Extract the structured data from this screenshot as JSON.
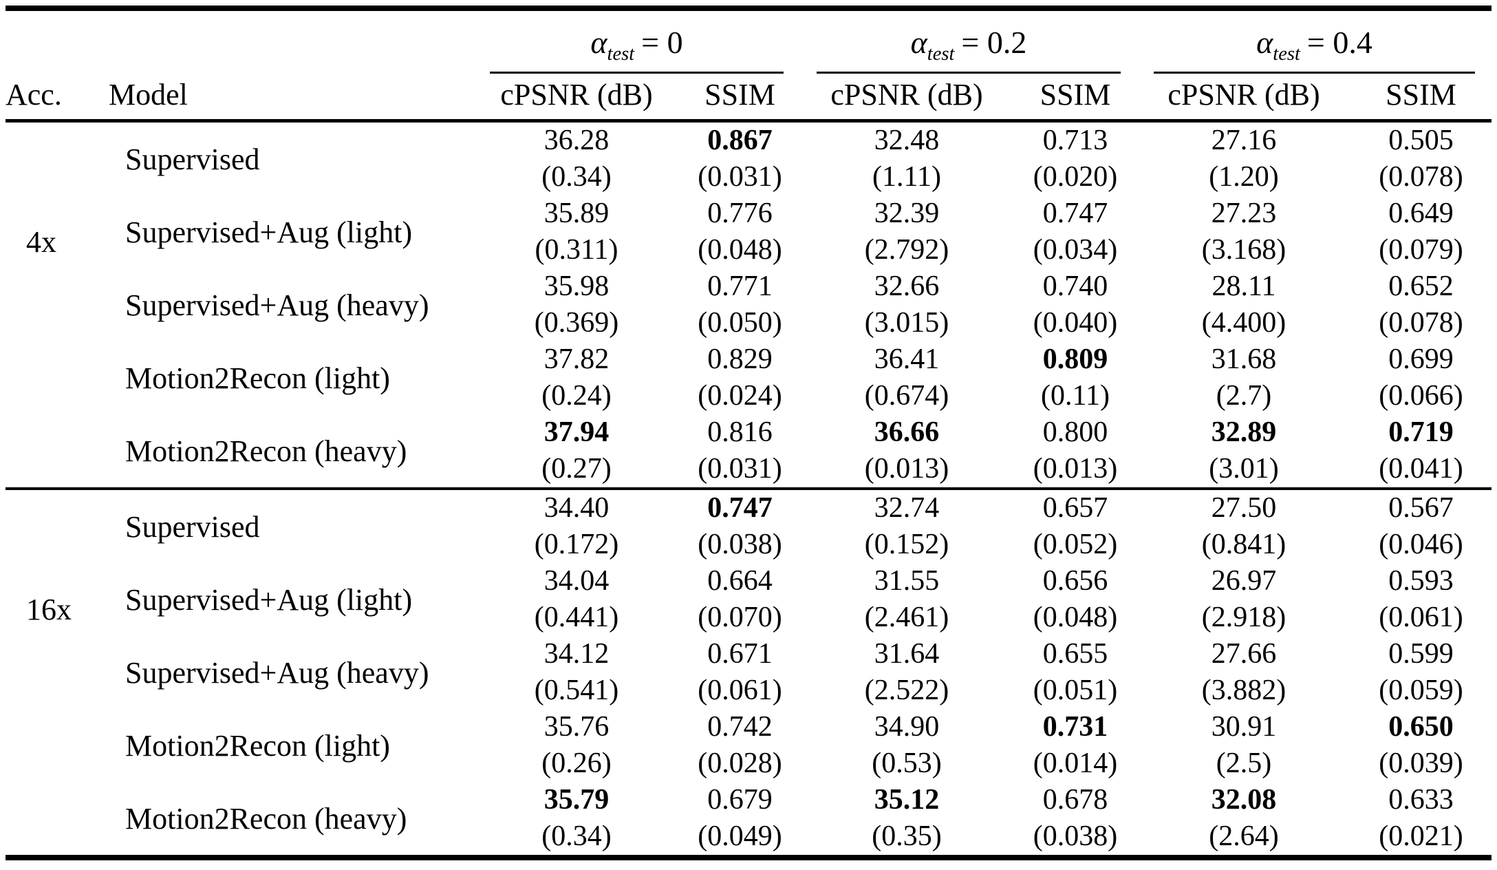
{
  "header": {
    "acc": "Acc.",
    "model": "Model",
    "alpha_groups": [
      {
        "alpha": "α",
        "sub": "test",
        "eq": "= 0"
      },
      {
        "alpha": "α",
        "sub": "test",
        "eq": "= 0.2"
      },
      {
        "alpha": "α",
        "sub": "test",
        "eq": "= 0.4"
      }
    ],
    "metric_cols": [
      "cPSNR (dB)",
      "SSIM",
      "cPSNR (dB)",
      "SSIM",
      "cPSNR (dB)",
      "SSIM"
    ]
  },
  "body": {
    "groups": [
      {
        "acc": "4x",
        "rows": [
          {
            "model": "Supervised",
            "cells": [
              {
                "v": "36.28",
                "s": "(0.34)",
                "bold": false
              },
              {
                "v": "0.867",
                "s": "(0.031)",
                "bold": true
              },
              {
                "v": "32.48",
                "s": "(1.11)",
                "bold": false
              },
              {
                "v": "0.713",
                "s": "(0.020)",
                "bold": false
              },
              {
                "v": "27.16",
                "s": "(1.20)",
                "bold": false
              },
              {
                "v": "0.505",
                "s": "(0.078)",
                "bold": false
              }
            ]
          },
          {
            "model": "Supervised+Aug (light)",
            "cells": [
              {
                "v": "35.89",
                "s": "(0.311)",
                "bold": false
              },
              {
                "v": "0.776",
                "s": "(0.048)",
                "bold": false
              },
              {
                "v": "32.39",
                "s": "(2.792)",
                "bold": false
              },
              {
                "v": "0.747",
                "s": "(0.034)",
                "bold": false
              },
              {
                "v": "27.23",
                "s": "(3.168)",
                "bold": false
              },
              {
                "v": "0.649",
                "s": "(0.079)",
                "bold": false
              }
            ]
          },
          {
            "model": "Supervised+Aug (heavy)",
            "cells": [
              {
                "v": "35.98",
                "s": "(0.369)",
                "bold": false
              },
              {
                "v": "0.771",
                "s": "(0.050)",
                "bold": false
              },
              {
                "v": "32.66",
                "s": "(3.015)",
                "bold": false
              },
              {
                "v": "0.740",
                "s": "(0.040)",
                "bold": false
              },
              {
                "v": "28.11",
                "s": "(4.400)",
                "bold": false
              },
              {
                "v": "0.652",
                "s": "(0.078)",
                "bold": false
              }
            ]
          },
          {
            "model": "Motion2Recon (light)",
            "cells": [
              {
                "v": "37.82",
                "s": "(0.24)",
                "bold": false
              },
              {
                "v": "0.829",
                "s": "(0.024)",
                "bold": false
              },
              {
                "v": "36.41",
                "s": "(0.674)",
                "bold": false
              },
              {
                "v": "0.809",
                "s": "(0.11)",
                "bold": true
              },
              {
                "v": "31.68",
                "s": "(2.7)",
                "bold": false
              },
              {
                "v": "0.699",
                "s": "(0.066)",
                "bold": false
              }
            ]
          },
          {
            "model": "Motion2Recon (heavy)",
            "cells": [
              {
                "v": "37.94",
                "s": "(0.27)",
                "bold": true
              },
              {
                "v": "0.816",
                "s": "(0.031)",
                "bold": false
              },
              {
                "v": "36.66",
                "s": "(0.013)",
                "bold": true
              },
              {
                "v": "0.800",
                "s": "(0.013)",
                "bold": false
              },
              {
                "v": "32.89",
                "s": "(3.01)",
                "bold": true
              },
              {
                "v": "0.719",
                "s": "(0.041)",
                "bold": true
              }
            ]
          }
        ]
      },
      {
        "acc": "16x",
        "rows": [
          {
            "model": "Supervised",
            "cells": [
              {
                "v": "34.40",
                "s": "(0.172)",
                "bold": false
              },
              {
                "v": "0.747",
                "s": "(0.038)",
                "bold": true
              },
              {
                "v": "32.74",
                "s": "(0.152)",
                "bold": false
              },
              {
                "v": "0.657",
                "s": "(0.052)",
                "bold": false
              },
              {
                "v": "27.50",
                "s": "(0.841)",
                "bold": false
              },
              {
                "v": "0.567",
                "s": "(0.046)",
                "bold": false
              }
            ]
          },
          {
            "model": "Supervised+Aug (light)",
            "cells": [
              {
                "v": "34.04",
                "s": "(0.441)",
                "bold": false
              },
              {
                "v": "0.664",
                "s": "(0.070)",
                "bold": false
              },
              {
                "v": "31.55",
                "s": "(2.461)",
                "bold": false
              },
              {
                "v": "0.656",
                "s": "(0.048)",
                "bold": false
              },
              {
                "v": "26.97",
                "s": "(2.918)",
                "bold": false
              },
              {
                "v": "0.593",
                "s": "(0.061)",
                "bold": false
              }
            ]
          },
          {
            "model": "Supervised+Aug (heavy)",
            "cells": [
              {
                "v": "34.12",
                "s": "(0.541)",
                "bold": false
              },
              {
                "v": "0.671",
                "s": "(0.061)",
                "bold": false
              },
              {
                "v": "31.64",
                "s": "(2.522)",
                "bold": false
              },
              {
                "v": "0.655",
                "s": "(0.051)",
                "bold": false
              },
              {
                "v": "27.66",
                "s": "(3.882)",
                "bold": false
              },
              {
                "v": "0.599",
                "s": "(0.059)",
                "bold": false
              }
            ]
          },
          {
            "model": "Motion2Recon (light)",
            "cells": [
              {
                "v": "35.76",
                "s": "(0.26)",
                "bold": false
              },
              {
                "v": "0.742",
                "s": "(0.028)",
                "bold": false
              },
              {
                "v": "34.90",
                "s": "(0.53)",
                "bold": false
              },
              {
                "v": "0.731",
                "s": "(0.014)",
                "bold": true
              },
              {
                "v": "30.91",
                "s": "(2.5)",
                "bold": false
              },
              {
                "v": "0.650",
                "s": "(0.039)",
                "bold": true
              }
            ]
          },
          {
            "model": "Motion2Recon (heavy)",
            "cells": [
              {
                "v": "35.79",
                "s": "(0.34)",
                "bold": true
              },
              {
                "v": "0.679",
                "s": "(0.049)",
                "bold": false
              },
              {
                "v": "35.12",
                "s": "(0.35)",
                "bold": true
              },
              {
                "v": "0.678",
                "s": "(0.038)",
                "bold": false
              },
              {
                "v": "32.08",
                "s": "(2.64)",
                "bold": true
              },
              {
                "v": "0.633",
                "s": "(0.021)",
                "bold": false
              }
            ]
          }
        ]
      }
    ]
  }
}
